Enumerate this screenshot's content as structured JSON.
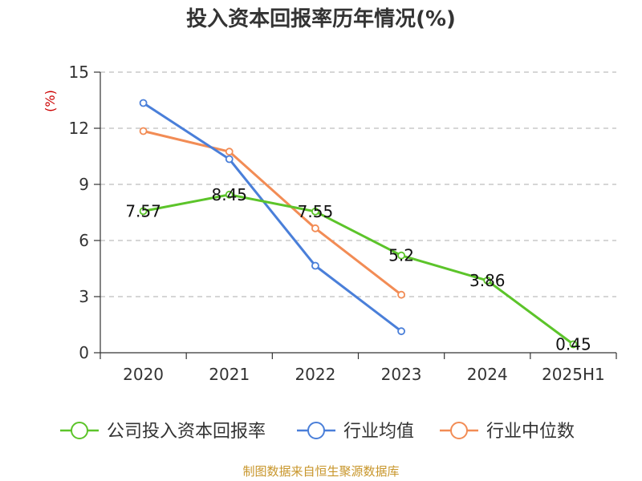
{
  "chart_data": {
    "type": "line",
    "title": "投入资本回报率历年情况(%)",
    "ylabel": "(%)",
    "categories": [
      "2020",
      "2021",
      "2022",
      "2023",
      "2024",
      "2025H1"
    ],
    "ylim": [
      0,
      15
    ],
    "yticks": [
      0,
      3,
      6,
      9,
      12,
      15
    ],
    "grid": true,
    "legend_position": "bottom",
    "series": [
      {
        "name": "公司投入资本回报率",
        "color": "#5cc42a",
        "values": [
          7.57,
          8.45,
          7.55,
          5.2,
          3.86,
          0.45
        ],
        "labels": [
          "7.57",
          "8.45",
          "7.55",
          "5.2",
          "3.86",
          "0.45"
        ]
      },
      {
        "name": "行业均值",
        "color": "#4a7fd9",
        "values": [
          13.35,
          10.35,
          4.65,
          1.15,
          null,
          null
        ]
      },
      {
        "name": "行业中位数",
        "color": "#f28c55",
        "values": [
          11.85,
          10.75,
          6.65,
          3.1,
          null,
          null
        ]
      }
    ]
  },
  "source": "制图数据来自恒生聚源数据库"
}
